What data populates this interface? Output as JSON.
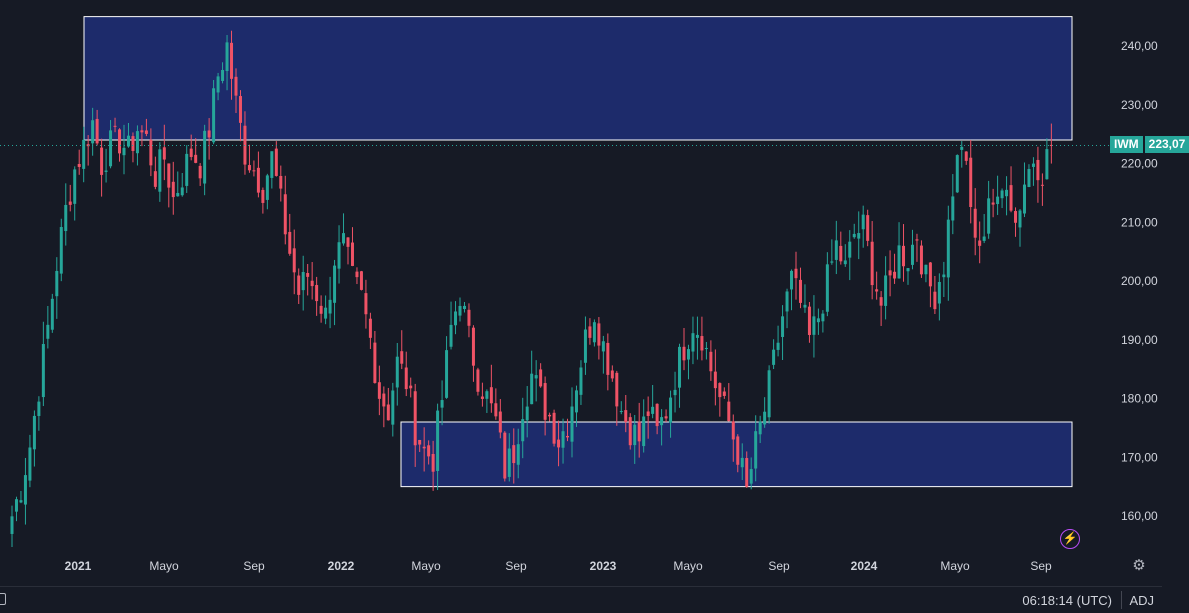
{
  "chart_data": {
    "type": "candlestick",
    "symbol": "IWM",
    "last_price": 223.07,
    "last_price_label": "223,07",
    "y_ticks": [
      "240,00",
      "230,00",
      "220,00",
      "210,00",
      "200,00",
      "190,00",
      "180,00",
      "170,00",
      "160,00"
    ],
    "y_tick_values": [
      240,
      230,
      220,
      210,
      200,
      190,
      180,
      170,
      160
    ],
    "x_ticks": [
      {
        "label": "2021",
        "year": true
      },
      {
        "label": "Mayo",
        "year": false
      },
      {
        "label": "Sep",
        "year": false
      },
      {
        "label": "2022",
        "year": true
      },
      {
        "label": "Mayo",
        "year": false
      },
      {
        "label": "Sep",
        "year": false
      },
      {
        "label": "2023",
        "year": true
      },
      {
        "label": "Mayo",
        "year": false
      },
      {
        "label": "Sep",
        "year": false
      },
      {
        "label": "2024",
        "year": true
      },
      {
        "label": "Mayo",
        "year": false
      },
      {
        "label": "Sep",
        "year": false
      }
    ],
    "zones": [
      {
        "start": "2021-01",
        "end": "2024-11",
        "low": 224,
        "high": 245
      },
      {
        "start": "2022-04",
        "end": "2024-11",
        "low": 165,
        "high": 176
      }
    ],
    "price_path": [
      [
        0,
        160
      ],
      [
        2,
        165
      ],
      [
        4,
        172
      ],
      [
        6,
        182
      ],
      [
        8,
        192
      ],
      [
        10,
        203
      ],
      [
        12,
        212
      ],
      [
        14,
        219
      ],
      [
        16,
        223
      ],
      [
        18,
        227
      ],
      [
        20,
        220
      ],
      [
        22,
        223
      ],
      [
        24,
        224
      ],
      [
        26,
        222
      ],
      [
        28,
        226
      ],
      [
        30,
        224
      ],
      [
        32,
        218
      ],
      [
        34,
        221
      ],
      [
        36,
        214
      ],
      [
        38,
        218
      ],
      [
        40,
        222
      ],
      [
        42,
        220
      ],
      [
        44,
        226
      ],
      [
        46,
        235
      ],
      [
        48,
        240
      ],
      [
        50,
        230
      ],
      [
        52,
        222
      ],
      [
        54,
        219
      ],
      [
        56,
        216
      ],
      [
        58,
        221
      ],
      [
        60,
        213
      ],
      [
        62,
        205
      ],
      [
        64,
        198
      ],
      [
        66,
        201
      ],
      [
        68,
        198
      ],
      [
        70,
        194
      ],
      [
        72,
        204
      ],
      [
        74,
        206
      ],
      [
        76,
        200
      ],
      [
        78,
        197
      ],
      [
        80,
        190
      ],
      [
        82,
        181
      ],
      [
        84,
        178
      ],
      [
        86,
        186
      ],
      [
        88,
        183
      ],
      [
        90,
        175
      ],
      [
        92,
        171
      ],
      [
        94,
        170
      ],
      [
        96,
        180
      ],
      [
        98,
        192
      ],
      [
        100,
        198
      ],
      [
        102,
        190
      ],
      [
        104,
        184
      ],
      [
        106,
        180
      ],
      [
        108,
        176
      ],
      [
        110,
        168
      ],
      [
        112,
        171
      ],
      [
        114,
        179
      ],
      [
        116,
        184
      ],
      [
        118,
        180
      ],
      [
        120,
        177
      ],
      [
        122,
        173
      ],
      [
        124,
        176
      ],
      [
        126,
        183
      ],
      [
        128,
        190
      ],
      [
        130,
        195
      ],
      [
        132,
        189
      ],
      [
        134,
        184
      ],
      [
        136,
        178
      ],
      [
        138,
        175
      ],
      [
        140,
        173
      ],
      [
        142,
        178
      ],
      [
        144,
        174
      ],
      [
        146,
        178
      ],
      [
        148,
        184
      ],
      [
        150,
        189
      ],
      [
        152,
        193
      ],
      [
        154,
        191
      ],
      [
        156,
        185
      ],
      [
        158,
        180
      ],
      [
        160,
        176
      ],
      [
        162,
        171
      ],
      [
        164,
        164
      ],
      [
        166,
        172
      ],
      [
        168,
        178
      ],
      [
        170,
        186
      ],
      [
        172,
        194
      ],
      [
        174,
        200
      ],
      [
        176,
        196
      ],
      [
        178,
        190
      ],
      [
        180,
        194
      ],
      [
        182,
        200
      ],
      [
        184,
        206
      ],
      [
        186,
        202
      ],
      [
        188,
        208
      ],
      [
        190,
        209
      ],
      [
        192,
        202
      ],
      [
        194,
        196
      ],
      [
        196,
        200
      ],
      [
        198,
        205
      ],
      [
        200,
        204
      ],
      [
        202,
        208
      ],
      [
        204,
        200
      ],
      [
        206,
        198
      ],
      [
        208,
        203
      ],
      [
        210,
        216
      ],
      [
        212,
        224
      ],
      [
        214,
        212
      ],
      [
        216,
        204
      ],
      [
        218,
        215
      ],
      [
        220,
        212
      ],
      [
        222,
        218
      ],
      [
        224,
        210
      ],
      [
        226,
        217
      ],
      [
        228,
        221
      ],
      [
        230,
        219
      ],
      [
        232,
        223
      ]
    ]
  },
  "symbol_label": "IWM",
  "clock": "06:18:14 (UTC)",
  "adj": "ADJ",
  "colors": {
    "up": "#26a69a",
    "down": "#ef5366",
    "zone_fill": "#1e2f78",
    "zone_stroke": "#ffffff",
    "background": "#161a25"
  }
}
